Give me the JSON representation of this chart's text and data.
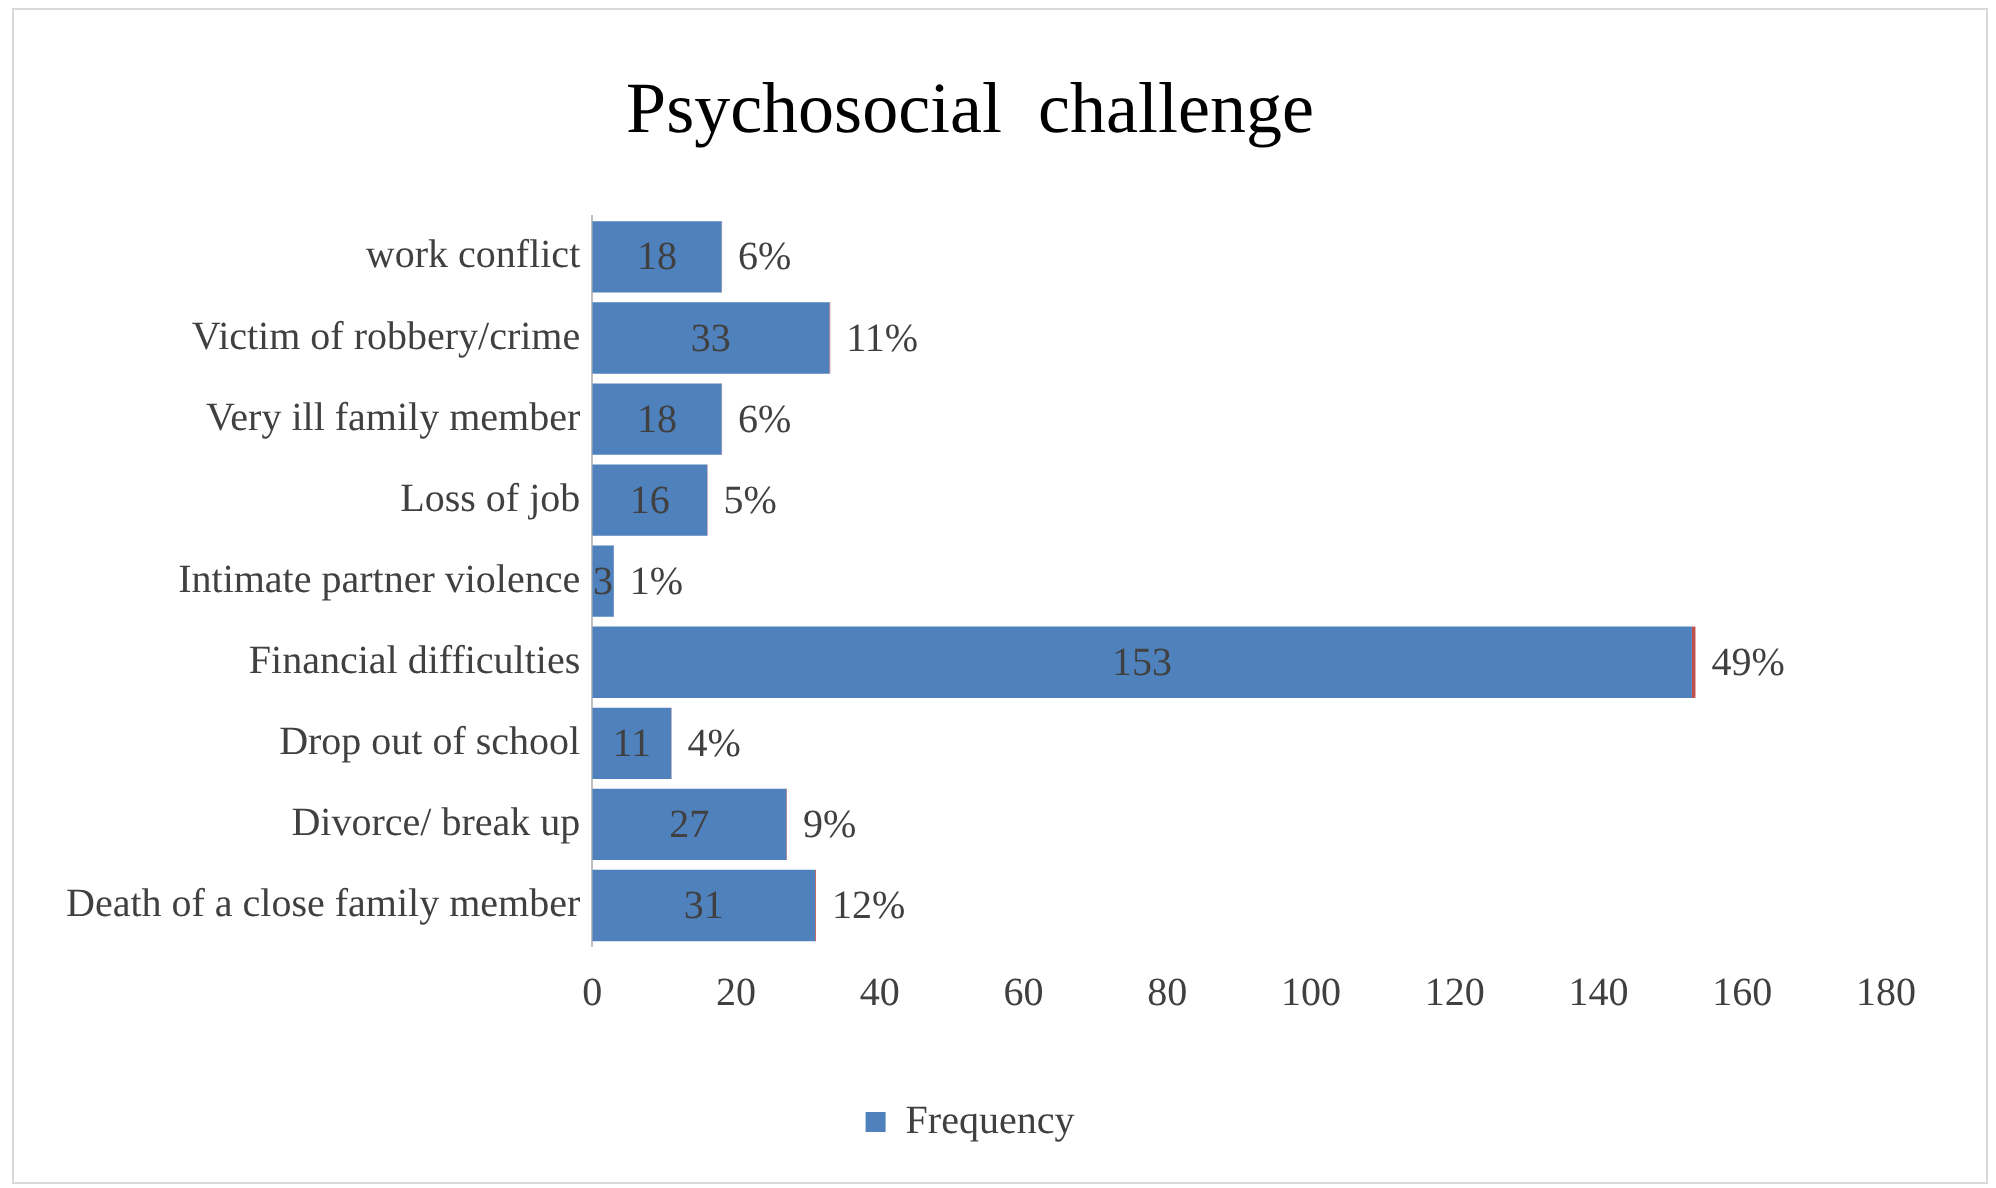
{
  "chart_data": {
    "type": "bar",
    "orientation": "horizontal",
    "stacked": true,
    "title": "Psychosocial  challenge",
    "categories": [
      "work conflict",
      "Victim of robbery/crime",
      "Very ill family member",
      "Loss of job",
      "Intimate partner violence",
      "Financial difficulties",
      "Drop out of school",
      "Divorce/ break up",
      "Death of a close family member"
    ],
    "series": [
      {
        "name": "Frequency",
        "color": "#4f81bd",
        "values": [
          18,
          33,
          18,
          16,
          3,
          153,
          11,
          27,
          31
        ],
        "value_labels": [
          "18",
          "33",
          "18",
          "16",
          "3",
          "153",
          "11",
          "27",
          "31"
        ]
      },
      {
        "color": "#c0504d",
        "values": [
          0.06,
          0.11,
          0.06,
          0.05,
          0.01,
          0.49,
          0.04,
          0.09,
          0.12
        ],
        "value_labels": [
          "6%",
          "11%",
          "6%",
          "5%",
          "1%",
          "49%",
          "4%",
          "9%",
          "12%"
        ]
      }
    ],
    "xlim": [
      0,
      180
    ],
    "xticks": [
      0,
      20,
      40,
      60,
      80,
      100,
      120,
      140,
      160,
      180
    ],
    "grid": false,
    "legend": "bottom"
  }
}
